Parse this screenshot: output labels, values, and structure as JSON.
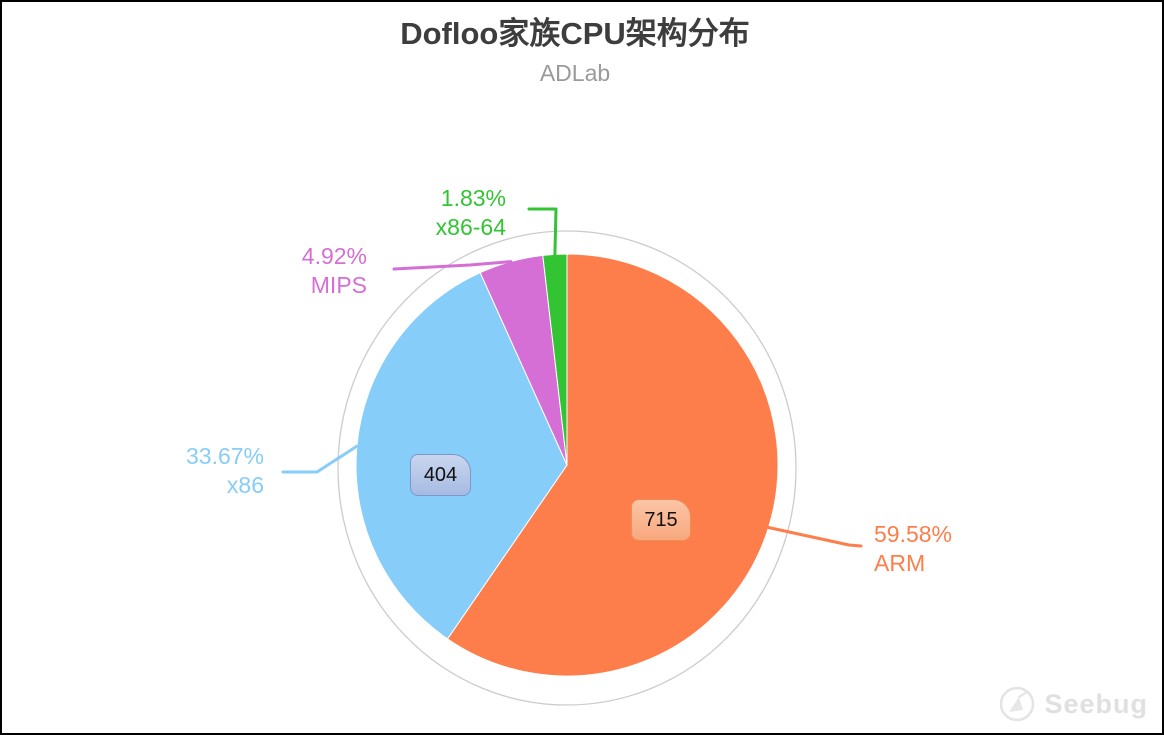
{
  "frame": {
    "background": "#ffffff",
    "border_color": "#000000"
  },
  "header": {
    "title": "Dofloo家族CPU架构分布",
    "subtitle": "ADLab",
    "title_color": "#3d3d3d",
    "subtitle_color": "#9a9a9a"
  },
  "chart_data": {
    "type": "pie",
    "title": "Dofloo家族CPU架构分布",
    "subtitle": "ADLab",
    "direction": "clockwise",
    "start_angle": "top",
    "legend": "none",
    "outer_ring": true,
    "ring_color": "#cccccc",
    "slice_border_color": "#ffffff",
    "slices": [
      {
        "label": "ARM",
        "percent": 59.58,
        "percent_label": "59.58%",
        "value": 715,
        "color": "#FD7E4B",
        "badge": {
          "text": "715",
          "bg_top": "#fbc5a6",
          "bg_bottom": "#f8a87d",
          "border": "#ef8c58"
        }
      },
      {
        "label": "x86",
        "percent": 33.67,
        "percent_label": "33.67%",
        "value": 404,
        "color": "#86CDF9",
        "badge": {
          "text": "404",
          "bg_top": "#c9d6ef",
          "bg_bottom": "#a6bbe2",
          "border": "#7b97cc"
        }
      },
      {
        "label": "MIPS",
        "percent": 4.92,
        "percent_label": "4.92%",
        "color": "#D56FD5"
      },
      {
        "label": "x86-64",
        "percent": 1.83,
        "percent_label": "1.83%",
        "color": "#33C433"
      }
    ]
  },
  "watermark": {
    "text": "Seebug",
    "color": "#e0e0e0"
  }
}
